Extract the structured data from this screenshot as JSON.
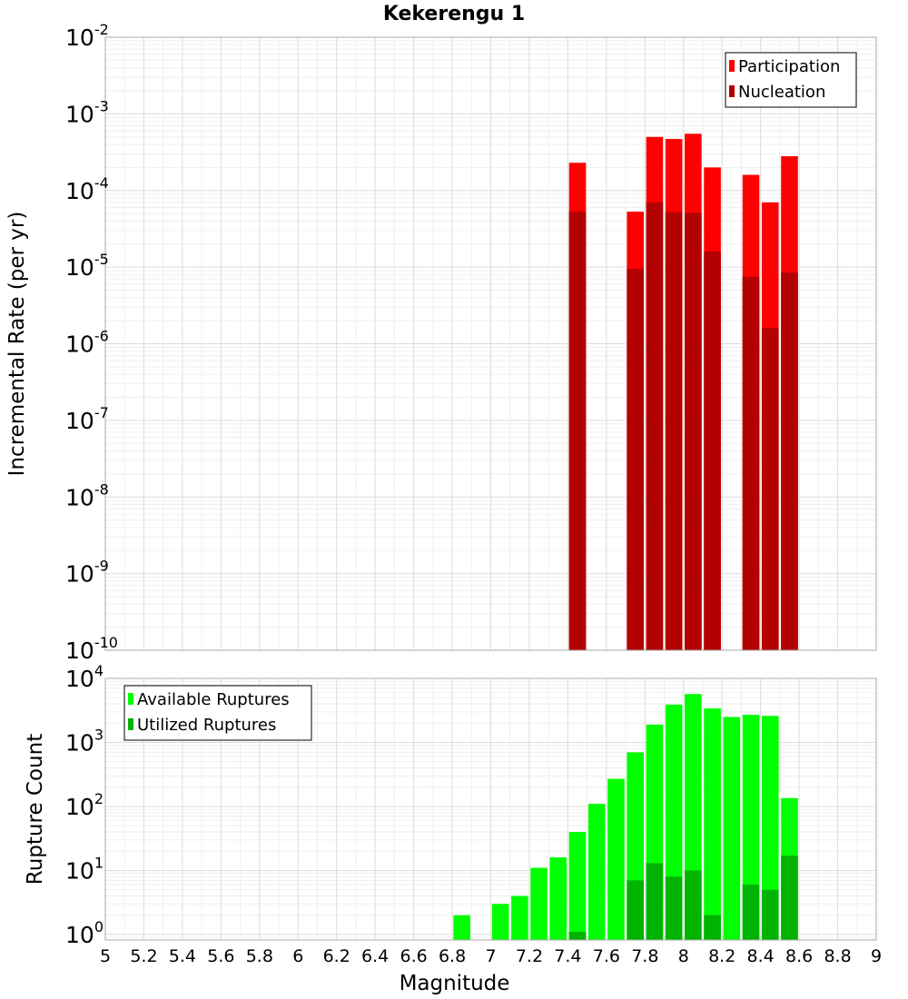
{
  "title": "Kekerengu 1",
  "chart_data": [
    {
      "type": "bar",
      "stacked_overlay": true,
      "y_scale": "log",
      "ylabel": "Incremental Rate (per yr)",
      "ylim": [
        1e-10,
        0.01
      ],
      "y_ticks": [
        {
          "base": "10",
          "exp": "-10"
        },
        {
          "base": "10",
          "exp": "-9"
        },
        {
          "base": "10",
          "exp": "-8"
        },
        {
          "base": "10",
          "exp": "-7"
        },
        {
          "base": "10",
          "exp": "-6"
        },
        {
          "base": "10",
          "exp": "-5"
        },
        {
          "base": "10",
          "exp": "-4"
        },
        {
          "base": "10",
          "exp": "-3"
        },
        {
          "base": "10",
          "exp": "-2"
        }
      ],
      "xlim": [
        5,
        9
      ],
      "legend_position": "top-right",
      "grid": true,
      "x": [
        7.45,
        7.75,
        7.85,
        7.95,
        8.05,
        8.15,
        8.35,
        8.45,
        8.55
      ],
      "series": [
        {
          "name": "Participation",
          "color": "#ff0000",
          "values": [
            0.00023,
            5.3e-05,
            0.0005,
            0.00047,
            0.00055,
            0.0002,
            0.00016,
            7e-05,
            0.00028
          ]
        },
        {
          "name": "Nucleation",
          "color": "#b30000",
          "values": [
            5.3e-05,
            9.5e-06,
            7e-05,
            5.2e-05,
            5.1e-05,
            1.6e-05,
            7.5e-06,
            1.6e-06,
            8.5e-06
          ]
        }
      ]
    },
    {
      "type": "bar",
      "stacked_overlay": true,
      "y_scale": "log",
      "ylabel": "Rupture Count",
      "xlabel": "Magnitude",
      "ylim": [
        0.82,
        10000
      ],
      "y_ticks": [
        {
          "base": "10",
          "exp": "0"
        },
        {
          "base": "10",
          "exp": "1"
        },
        {
          "base": "10",
          "exp": "2"
        },
        {
          "base": "10",
          "exp": "3"
        },
        {
          "base": "10",
          "exp": "4"
        }
      ],
      "xlim": [
        5,
        9
      ],
      "x_ticks": [
        "5",
        "5.2",
        "5.4",
        "5.6",
        "5.8",
        "6",
        "6.2",
        "6.4",
        "6.6",
        "6.8",
        "7",
        "7.2",
        "7.4",
        "7.6",
        "7.8",
        "8",
        "8.2",
        "8.4",
        "8.6",
        "8.8",
        "9"
      ],
      "legend_position": "top-left",
      "grid": true,
      "x": [
        6.85,
        7.05,
        7.15,
        7.25,
        7.35,
        7.45,
        7.55,
        7.65,
        7.75,
        7.85,
        7.95,
        8.05,
        8.15,
        8.25,
        8.35,
        8.45,
        8.55
      ],
      "series": [
        {
          "name": "Available Ruptures",
          "color": "#00ff00",
          "values": [
            2,
            3,
            4,
            11,
            16,
            40,
            110,
            270,
            700,
            1900,
            3900,
            5700,
            3400,
            2500,
            2700,
            2600,
            135
          ]
        },
        {
          "name": "Utilized Ruptures",
          "color": "#00b300",
          "values": [
            0,
            0,
            0,
            0,
            0,
            1.1,
            0,
            0,
            7,
            13,
            8,
            10,
            2,
            0,
            6,
            5,
            17
          ]
        }
      ]
    }
  ]
}
